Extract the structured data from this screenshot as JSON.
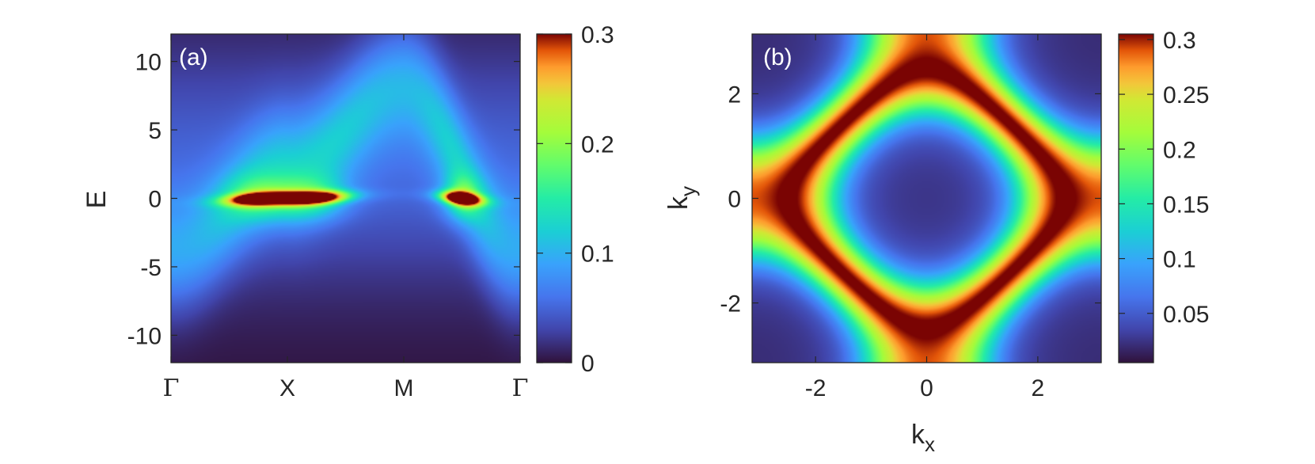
{
  "chart_data": [
    {
      "panel_label": "(a)",
      "type": "heatmap",
      "ylabel": "E",
      "ylim": [
        -12,
        12
      ],
      "yticks": [
        10,
        5,
        0,
        -5,
        -10
      ],
      "xtick_labels": [
        "Γ",
        "X",
        "M",
        "Γ"
      ],
      "colorbar": {
        "range": [
          0,
          0.3
        ],
        "ticks": [
          "0.3",
          "0.2",
          "0.1",
          "0"
        ]
      },
      "description": "spectral function A(k,E) along high-symmetry path; bright quasiparticle band near E=0 from Γ to X and near M–Γ, broad dispersive incoherent band peaking near E≈10 at M"
    },
    {
      "panel_label": "(b)",
      "type": "heatmap",
      "xlabel": "k",
      "xlabel_sub": "x",
      "ylabel": "k",
      "ylabel_sub": "y",
      "xlim": [
        -3.1416,
        3.1416
      ],
      "ylim": [
        -3.1416,
        3.1416
      ],
      "xticks": [
        "-2",
        "0",
        "2"
      ],
      "yticks": [
        "2",
        "0",
        "-2"
      ],
      "colorbar": {
        "range": [
          0.005,
          0.305
        ],
        "ticks": [
          "0.3",
          "0.25",
          "0.2",
          "0.15",
          "0.1",
          "0.05"
        ]
      },
      "description": "spectral weight at Fermi level over the Brillouin zone; high-weight ring following cos kx + cos ky ≈ 0.2"
    }
  ],
  "colors": {
    "axis": "#262626",
    "background": "#ffffff"
  }
}
